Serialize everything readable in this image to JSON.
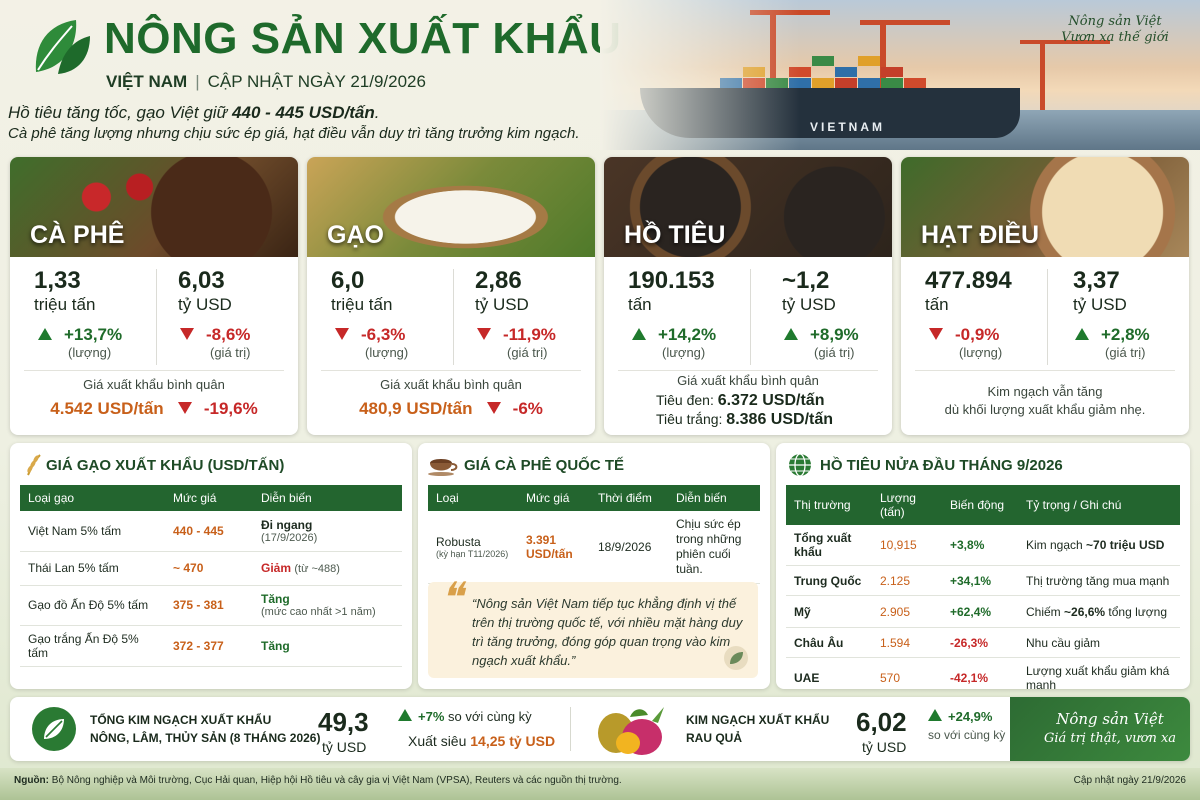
{
  "header": {
    "title": "NÔNG SẢN XUẤT KHẨU",
    "country": "VIỆT NAM",
    "update": "CẬP NHẬT NGÀY 21/9/2026",
    "lead1_a": "Hồ tiêu tăng tốc, gạo Việt giữ ",
    "lead1_b": "440 - 445 USD/tấn",
    "lead1_c": ".",
    "lead2": "Cà phê tăng lượng nhưng chịu sức ép giá, hạt điều vẫn duy trì tăng trưởng kim ngạch.",
    "ship_label": "VIETNAM",
    "slogan_1": "Nông sản Việt",
    "slogan_2": "Vươn xa thế giới"
  },
  "cards": [
    {
      "name": "CÀ PHÊ",
      "vol": "1,33",
      "vol_unit": "triệu tấn",
      "val": "6,03",
      "val_unit": "tỷ USD",
      "vol_chg": "+13,7%",
      "vol_lbl": "(lượng)",
      "val_chg": "-8,6%",
      "val_lbl": "(giá trị)",
      "avg_label": "Giá xuất khẩu bình quân",
      "avg_value": "4.542 USD/tấn",
      "avg_chg": "-19,6%"
    },
    {
      "name": "GẠO",
      "vol": "6,0",
      "vol_unit": "triệu tấn",
      "val": "2,86",
      "val_unit": "tỷ USD",
      "vol_chg": "-6,3%",
      "vol_lbl": "(lượng)",
      "val_chg": "-11,9%",
      "val_lbl": "(giá trị)",
      "avg_label": "Giá xuất khẩu bình quân",
      "avg_value": "480,9 USD/tấn",
      "avg_chg": "-6%"
    },
    {
      "name": "HỒ TIÊU",
      "vol": "190.153",
      "vol_unit": "tấn",
      "val": "~1,2",
      "val_unit": "tỷ USD",
      "vol_chg": "+14,2%",
      "vol_lbl": "(lượng)",
      "val_chg": "+8,9%",
      "val_lbl": "(giá trị)",
      "avg_label": "Giá xuất khẩu bình quân",
      "black_lbl": "Tiêu đen:",
      "black_val": "6.372 USD/tấn",
      "white_lbl": "Tiêu trắng:",
      "white_val": "8.386 USD/tấn"
    },
    {
      "name": "HẠT ĐIỀU",
      "vol": "477.894",
      "vol_unit": "tấn",
      "val": "3,37",
      "val_unit": "tỷ USD",
      "vol_chg": "-0,9%",
      "vol_lbl": "(lượng)",
      "val_chg": "+2,8%",
      "val_lbl": "(giá trị)",
      "note1": "Kim ngạch vẫn tăng",
      "note2": "dù khối lượng xuất khẩu giảm nhẹ."
    }
  ],
  "rice": {
    "title": "GIÁ GẠO XUẤT KHẨU (USD/TẤN)",
    "headers": [
      "Loại gạo",
      "Mức giá",
      "Diễn biến"
    ],
    "rows": [
      {
        "type": "Việt Nam 5% tấm",
        "price": "440 - 445",
        "trend": "Đi ngang",
        "note": "(17/9/2026)"
      },
      {
        "type": "Thái Lan 5% tấm",
        "price": "~ 470",
        "trend": "Giảm",
        "note": "(từ ~488)"
      },
      {
        "type": "Gạo đồ Ấn Độ 5% tấm",
        "price": "375 - 381",
        "trend": "Tăng",
        "note": "(mức cao nhất >1 năm)"
      },
      {
        "type": "Gạo trắng Ấn Độ 5% tấm",
        "price": "372 - 377",
        "trend": "Tăng",
        "note": ""
      }
    ]
  },
  "coffee": {
    "title": "GIÁ CÀ PHÊ QUỐC TẾ",
    "headers": [
      "Loại",
      "Mức giá",
      "Thời điểm",
      "Diễn biến"
    ],
    "type": "Robusta",
    "type_note": "(kỳ hạn T11/2026)",
    "price": "3.391",
    "price_unit": "USD/tấn",
    "time": "18/9/2026",
    "trend": "Chịu sức ép trong những phiên cuối tuần.",
    "quote": "“Nông sản Việt Nam tiếp tục khẳng định vị thế trên thị trường quốc tế, với nhiều mặt hàng duy trì tăng trưởng, đóng góp quan trọng vào kim ngạch xuất khẩu.”"
  },
  "pepper": {
    "title": "HỒ TIÊU NỬA ĐẦU THÁNG 9/2026",
    "headers": [
      "Thị trường",
      "Lượng (tấn)",
      "Biến động",
      "Tỷ trọng / Ghi chú"
    ],
    "rows": [
      {
        "market": "Tổng xuất khẩu",
        "qty": "10,915",
        "chg": "+3,8%",
        "note_a": "Kim ngạch ",
        "note_b": "~70 triệu USD",
        "note_c": ""
      },
      {
        "market": "Trung Quốc",
        "qty": "2.125",
        "chg": "+34,1%",
        "note_a": "Thị trường tăng mua mạnh",
        "note_b": "",
        "note_c": ""
      },
      {
        "market": "Mỹ",
        "qty": "2.905",
        "chg": "+62,4%",
        "note_a": "Chiếm ",
        "note_b": "~26,6%",
        "note_c": " tổng lượng"
      },
      {
        "market": "Châu Âu",
        "qty": "1.594",
        "chg": "-26,3%",
        "note_a": "Nhu cầu giảm",
        "note_b": "",
        "note_c": ""
      },
      {
        "market": "UAE",
        "qty": "570",
        "chg": "-42,1%",
        "note_a": "Lượng xuất khẩu giảm khá mạnh",
        "note_b": "",
        "note_c": ""
      }
    ]
  },
  "bottom": {
    "t1": "TỔNG KIM NGẠCH XUẤT KHẨU",
    "t2": "NÔNG, LÂM, THỦY SẢN (8 THÁNG 2026)",
    "num": "49,3",
    "unit": "tỷ USD",
    "chg": "+7%",
    "chg_lbl": "so với cùng kỳ",
    "surplus_lbl": "Xuất siêu",
    "surplus_val": "14,25 tỷ USD",
    "f1": "KIM NGẠCH XUẤT KHẨU",
    "f2": "RAU QUẢ",
    "fnum": "6,02",
    "funit": "tỷ USD",
    "fchg": "+24,9%",
    "fchg_lbl": "so với cùng kỳ",
    "sign1": "Nông sản Việt",
    "sign2": "Giá trị thật, vươn xa"
  },
  "footer": {
    "src_lbl": "Nguồn:",
    "src": " Bộ Nông nghiệp và Môi trường, Cục Hải quan, Hiệp hội Hồ tiêu và cây gia vị Việt Nam (VPSA), Reuters và các nguồn thị trường.",
    "updated": "Cập nhật ngày 21/9/2026"
  }
}
